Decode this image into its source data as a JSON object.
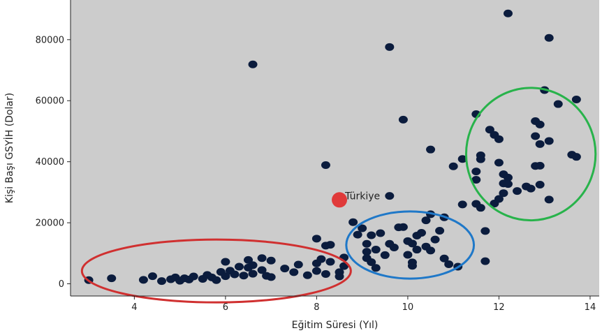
{
  "chart_data": {
    "type": "scatter",
    "xlabel": "Eğitim Süresi (Yıl)",
    "ylabel": "Kişi Başı GSYİH (Dolar)",
    "xlim": [
      2.6,
      14.2
    ],
    "ylim": [
      -4000,
      93000
    ],
    "xticks": [
      4,
      6,
      8,
      10,
      12,
      14
    ],
    "yticks": [
      0,
      20000,
      40000,
      60000,
      80000
    ],
    "grid": false,
    "colors": {
      "background": "#cccccc",
      "points": "#0b1c3d",
      "highlight": "#e03a3a",
      "cluster_low": "#d03030",
      "cluster_mid": "#1f78c8",
      "cluster_high": "#28b34b"
    },
    "series": [
      {
        "points": [
          [
            3.0,
            1200
          ],
          [
            3.5,
            1800
          ],
          [
            4.2,
            1300
          ],
          [
            4.4,
            2500
          ],
          [
            4.6,
            900
          ],
          [
            4.8,
            1500
          ],
          [
            4.9,
            2100
          ],
          [
            5.0,
            1000
          ],
          [
            5.1,
            1800
          ],
          [
            5.2,
            1400
          ],
          [
            5.3,
            2400
          ],
          [
            5.5,
            1600
          ],
          [
            5.6,
            2900
          ],
          [
            5.7,
            2100
          ],
          [
            5.8,
            1200
          ],
          [
            5.9,
            3900
          ],
          [
            6.0,
            2500
          ],
          [
            6.0,
            7200
          ],
          [
            6.1,
            4300
          ],
          [
            6.2,
            3100
          ],
          [
            6.3,
            5600
          ],
          [
            6.4,
            2700
          ],
          [
            6.5,
            7800
          ],
          [
            6.5,
            5300
          ],
          [
            6.6,
            6100
          ],
          [
            6.6,
            3300
          ],
          [
            6.8,
            8400
          ],
          [
            6.8,
            4500
          ],
          [
            6.9,
            2600
          ],
          [
            7.0,
            7600
          ],
          [
            7.0,
            2200
          ],
          [
            7.3,
            5000
          ],
          [
            7.5,
            3800
          ],
          [
            7.6,
            6300
          ],
          [
            7.8,
            2800
          ],
          [
            8.0,
            6700
          ],
          [
            8.0,
            4200
          ],
          [
            8.1,
            8100
          ],
          [
            8.2,
            3200
          ],
          [
            8.3,
            7200
          ],
          [
            8.5,
            3800
          ],
          [
            8.5,
            2400
          ],
          [
            8.0,
            14800
          ],
          [
            8.2,
            12500
          ],
          [
            8.3,
            12800
          ],
          [
            8.6,
            8600
          ],
          [
            8.6,
            5800
          ],
          [
            8.8,
            20200
          ],
          [
            8.9,
            16100
          ],
          [
            9.0,
            18200
          ],
          [
            9.1,
            13100
          ],
          [
            9.1,
            10500
          ],
          [
            9.1,
            8400
          ],
          [
            9.2,
            7100
          ],
          [
            9.2,
            15900
          ],
          [
            9.3,
            11200
          ],
          [
            9.3,
            5200
          ],
          [
            9.4,
            16600
          ],
          [
            9.5,
            9400
          ],
          [
            9.6,
            13100
          ],
          [
            9.7,
            11900
          ],
          [
            9.8,
            18500
          ],
          [
            9.9,
            18600
          ],
          [
            10.0,
            9500
          ],
          [
            10.0,
            14000
          ],
          [
            10.1,
            13200
          ],
          [
            10.1,
            7000
          ],
          [
            10.1,
            5900
          ],
          [
            10.2,
            15800
          ],
          [
            10.2,
            11200
          ],
          [
            10.3,
            16700
          ],
          [
            10.4,
            12200
          ],
          [
            10.4,
            20800
          ],
          [
            10.5,
            22800
          ],
          [
            10.5,
            10900
          ],
          [
            10.6,
            14500
          ],
          [
            10.7,
            17400
          ],
          [
            10.8,
            21800
          ],
          [
            10.8,
            8300
          ],
          [
            10.9,
            6400
          ],
          [
            11.1,
            5600
          ],
          [
            11.2,
            26000
          ],
          [
            11.5,
            55600
          ],
          [
            11.5,
            36800
          ],
          [
            11.5,
            34100
          ],
          [
            11.6,
            42100
          ],
          [
            11.6,
            24900
          ],
          [
            11.7,
            7400
          ],
          [
            11.7,
            17300
          ],
          [
            11.8,
            50500
          ],
          [
            11.9,
            48800
          ],
          [
            11.9,
            26300
          ],
          [
            12.0,
            47400
          ],
          [
            12.0,
            39700
          ],
          [
            12.0,
            27800
          ],
          [
            12.1,
            29700
          ],
          [
            12.1,
            35900
          ],
          [
            12.1,
            32900
          ],
          [
            12.2,
            88600
          ],
          [
            12.2,
            34800
          ],
          [
            12.2,
            32700
          ],
          [
            12.4,
            30400
          ],
          [
            12.6,
            31900
          ],
          [
            12.7,
            31200
          ],
          [
            12.8,
            48400
          ],
          [
            12.8,
            53300
          ],
          [
            12.8,
            38600
          ],
          [
            12.9,
            52200
          ],
          [
            12.9,
            45800
          ],
          [
            12.9,
            38700
          ],
          [
            12.9,
            32500
          ],
          [
            13.0,
            63500
          ],
          [
            13.1,
            80600
          ],
          [
            13.1,
            46800
          ],
          [
            13.1,
            27600
          ],
          [
            13.3,
            58900
          ],
          [
            13.6,
            42300
          ],
          [
            13.7,
            60400
          ],
          [
            13.7,
            41600
          ],
          [
            11.6,
            40800
          ],
          [
            11.2,
            40900
          ],
          [
            11.0,
            38500
          ],
          [
            11.5,
            26200
          ],
          [
            10.5,
            44000
          ],
          [
            9.9,
            53800
          ],
          [
            9.6,
            77600
          ],
          [
            6.6,
            71900
          ],
          [
            8.2,
            38900
          ],
          [
            9.6,
            28800
          ]
        ]
      }
    ],
    "highlight": {
      "label": "Türkiye",
      "x": 8.5,
      "y": 27500
    },
    "clusters": [
      {
        "color": "cluster_low",
        "center": [
          5.8,
          4200
        ],
        "radius": [
          2.95,
          10300
        ]
      },
      {
        "color": "cluster_mid",
        "center": [
          10.05,
          12700
        ],
        "radius": [
          1.4,
          11000
        ]
      },
      {
        "color": "cluster_high",
        "center": [
          12.7,
          42500
        ],
        "radius": [
          1.42,
          21700
        ]
      }
    ]
  }
}
